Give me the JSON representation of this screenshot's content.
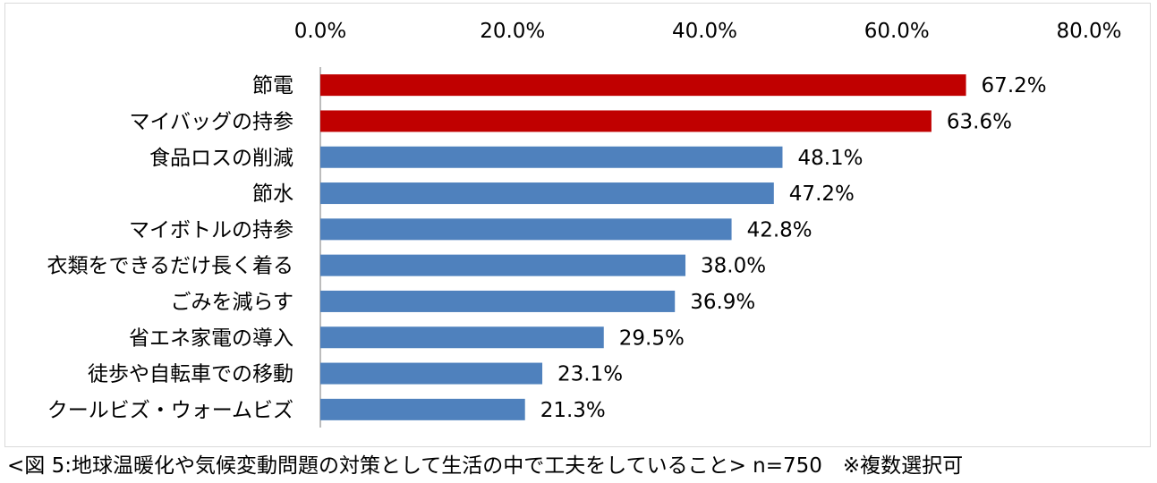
{
  "chart_data": {
    "type": "bar",
    "orientation": "horizontal",
    "title": "",
    "xlabel": "",
    "ylabel": "",
    "xlim": [
      0,
      80
    ],
    "x_tick_labels": [
      "0.0%",
      "20.0%",
      "40.0%",
      "60.0%",
      "80.0%"
    ],
    "x_ticks": [
      0,
      20,
      40,
      60,
      80
    ],
    "axis_position": "top",
    "grid": false,
    "legend": "none",
    "categories": [
      "節電",
      "マイバッグの持参",
      "食品ロスの削減",
      "節水",
      "マイボトルの持参",
      "衣類をできるだけ長く着る",
      "ごみを減らす",
      "省エネ家電の導入",
      "徒歩や自転車での移動",
      "クールビズ・ウォームビズ"
    ],
    "values": [
      67.2,
      63.6,
      48.1,
      47.2,
      42.8,
      38.0,
      36.9,
      29.5,
      23.1,
      21.3
    ],
    "value_labels": [
      "67.2%",
      "63.6%",
      "48.1%",
      "47.2%",
      "42.8%",
      "38.0%",
      "36.9%",
      "29.5%",
      "23.1%",
      "21.3%"
    ],
    "highlight_count": 2,
    "colors": {
      "highlight": "#c00000",
      "default": "#4f81bd",
      "axis": "#a6a6a6"
    }
  },
  "caption": "<図 5:地球温暖化や気候変動問題の対策として生活の中で工夫をしていること> n=750　※複数選択可"
}
